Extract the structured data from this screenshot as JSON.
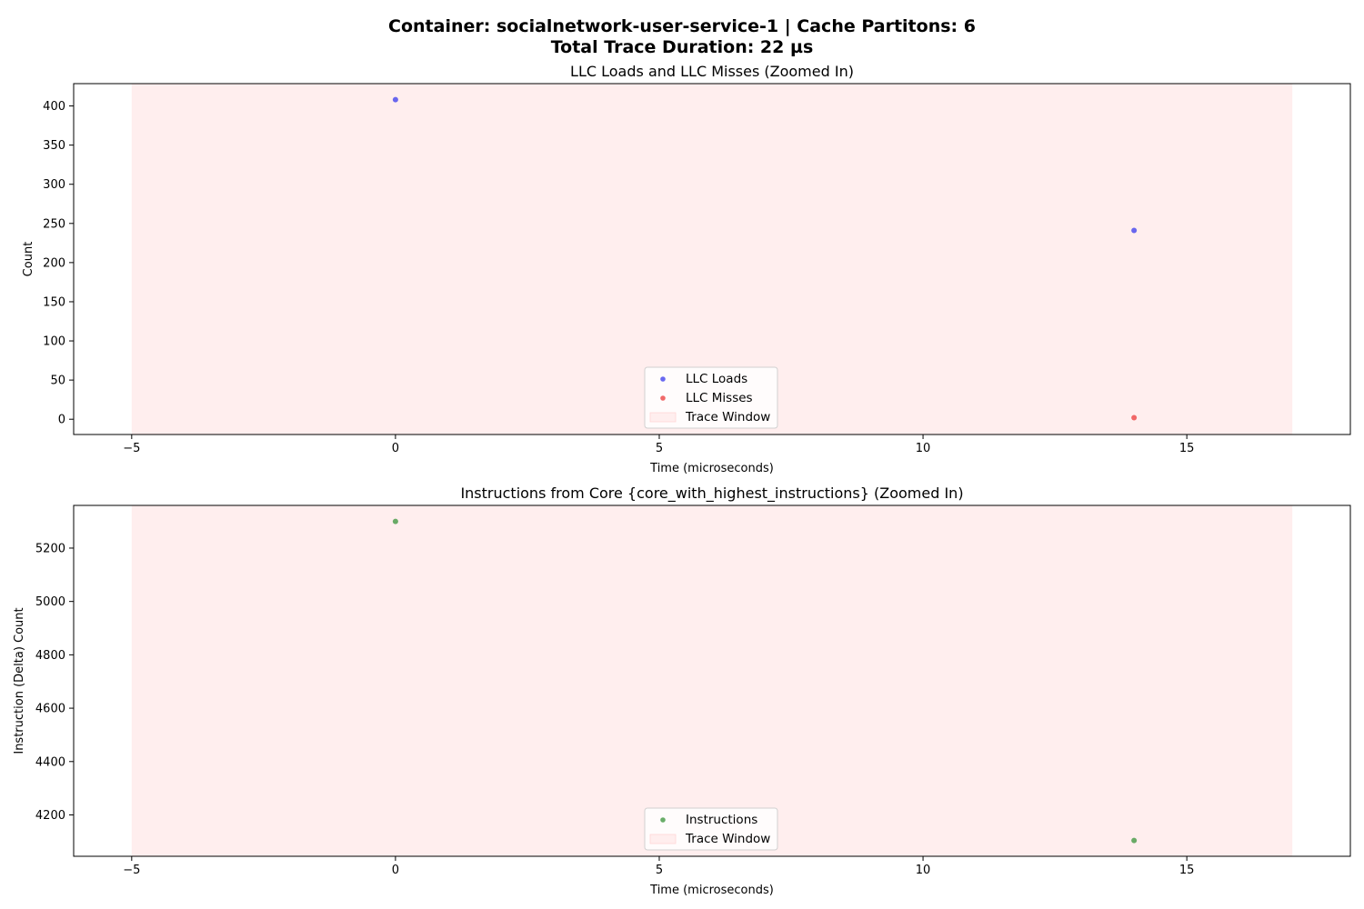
{
  "figure": {
    "title_line1": "Container: socialnetwork-user-service-1 | Cache Partitons: 6",
    "title_line2": "Total Trace Duration: 22 µs"
  },
  "chart_data": [
    {
      "type": "scatter",
      "title": "LLC Loads and LLC Misses (Zoomed In)",
      "xlabel": "Time (microseconds)",
      "ylabel": "Count",
      "xlim": [
        -6.1,
        18.1
      ],
      "ylim": [
        -19.5,
        428.5
      ],
      "xticks": [
        -5,
        0,
        5,
        10,
        15
      ],
      "yticks": [
        0,
        50,
        100,
        150,
        200,
        250,
        300,
        350,
        400
      ],
      "trace_window": {
        "label": "Trace Window",
        "x_start": -5,
        "x_end": 17,
        "color": "#ffeeee"
      },
      "grid": false,
      "legend_position": "lower center",
      "series": [
        {
          "name": "LLC Loads",
          "color": "#4444ee",
          "x": [
            0,
            14
          ],
          "y": [
            408,
            241
          ]
        },
        {
          "name": "LLC Misses",
          "color": "#ee4444",
          "x": [
            14
          ],
          "y": [
            2
          ]
        }
      ]
    },
    {
      "type": "scatter",
      "title": "Instructions from Core {core_with_highest_instructions} (Zoomed In)",
      "xlabel": "Time (microseconds)",
      "ylabel": "Instruction (Delta) Count",
      "xlim": [
        -6.1,
        18.1
      ],
      "ylim": [
        4045,
        5360
      ],
      "xticks": [
        -5,
        0,
        5,
        10,
        15
      ],
      "yticks": [
        4200,
        4400,
        4600,
        4800,
        5000,
        5200
      ],
      "trace_window": {
        "label": "Trace Window",
        "x_start": -5,
        "x_end": 17,
        "color": "#ffeeee"
      },
      "grid": false,
      "legend_position": "lower center",
      "series": [
        {
          "name": "Instructions",
          "color": "#449944",
          "x": [
            0,
            14
          ],
          "y": [
            5300,
            4104
          ]
        }
      ]
    }
  ]
}
